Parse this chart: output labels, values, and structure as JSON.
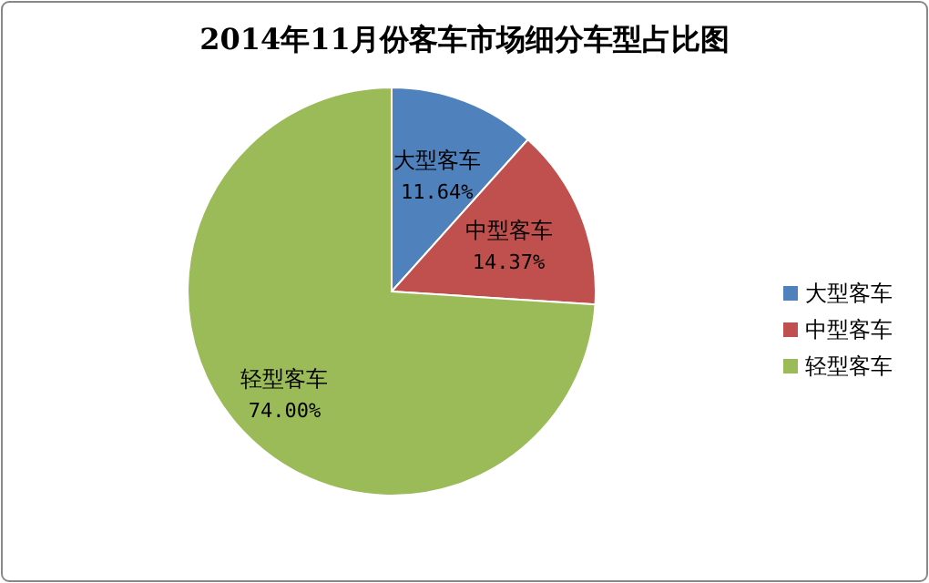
{
  "chart_data": {
    "type": "pie",
    "title": "2014年11月份客车市场细分车型占比图",
    "categories": [
      "大型客车",
      "中型客车",
      "轻型客车"
    ],
    "values": [
      11.64,
      14.37,
      74.0
    ],
    "colors": [
      "#4f81bd",
      "#c0504d",
      "#9bbb59"
    ],
    "value_labels": [
      "11.64%",
      "14.37%",
      "74.00%"
    ],
    "legend": "right"
  }
}
